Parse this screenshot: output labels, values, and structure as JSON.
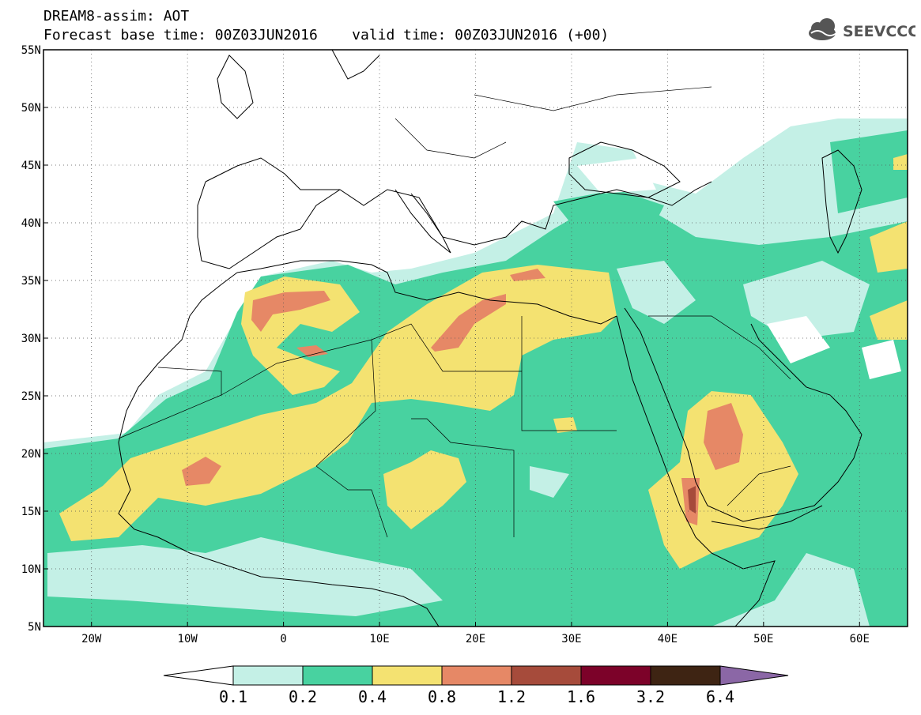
{
  "header": {
    "title_line1": "DREAM8-assim: AOT",
    "base_time_label": "Forecast base time: 00Z03JUN2016",
    "valid_time_label": "valid time: 00Z03JUN2016 (+00)"
  },
  "logo": {
    "text": "SEEVCCC",
    "color": "#555555"
  },
  "map": {
    "lon_range": [
      -25,
      65
    ],
    "lat_range": [
      5,
      55
    ],
    "lon_ticks": [
      {
        "value": -20,
        "label": "20W"
      },
      {
        "value": -10,
        "label": "10W"
      },
      {
        "value": 0,
        "label": "0"
      },
      {
        "value": 10,
        "label": "10E"
      },
      {
        "value": 20,
        "label": "20E"
      },
      {
        "value": 30,
        "label": "30E"
      },
      {
        "value": 40,
        "label": "40E"
      },
      {
        "value": 50,
        "label": "50E"
      },
      {
        "value": 60,
        "label": "60E"
      }
    ],
    "lat_ticks": [
      {
        "value": 5,
        "label": "5N"
      },
      {
        "value": 10,
        "label": "10N"
      },
      {
        "value": 15,
        "label": "15N"
      },
      {
        "value": 20,
        "label": "20N"
      },
      {
        "value": 25,
        "label": "25N"
      },
      {
        "value": 30,
        "label": "30N"
      },
      {
        "value": 35,
        "label": "35N"
      },
      {
        "value": 40,
        "label": "40N"
      },
      {
        "value": 45,
        "label": "45N"
      },
      {
        "value": 50,
        "label": "50N"
      },
      {
        "value": 55,
        "label": "55N"
      }
    ]
  },
  "legend": {
    "thresholds": [
      "0.1",
      "0.2",
      "0.4",
      "0.8",
      "1.2",
      "1.6",
      "3.2",
      "6.4"
    ],
    "colors": [
      "#ffffff",
      "#c4f0e6",
      "#48d2a0",
      "#f4e271",
      "#e68866",
      "#a64b3b",
      "#7c0229",
      "#3e2413",
      "#8b67a6"
    ]
  }
}
